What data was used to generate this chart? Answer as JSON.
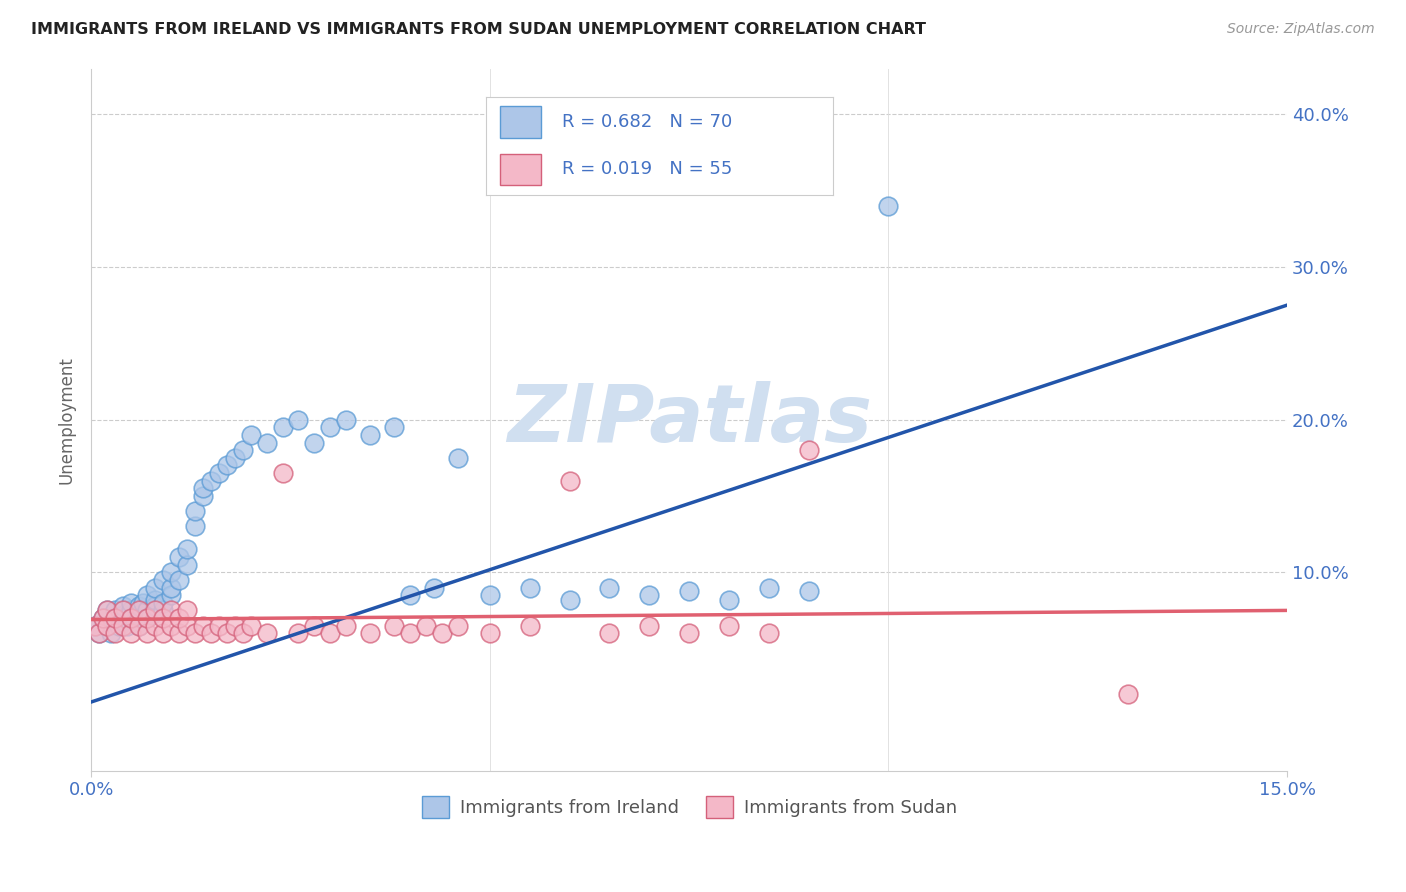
{
  "title": "IMMIGRANTS FROM IRELAND VS IMMIGRANTS FROM SUDAN UNEMPLOYMENT CORRELATION CHART",
  "source": "Source: ZipAtlas.com",
  "ylabel_label": "Unemployment",
  "x_min": 0.0,
  "x_max": 0.15,
  "y_min": -0.03,
  "y_max": 0.43,
  "ireland_color": "#adc6e8",
  "ireland_edge_color": "#5b9bd5",
  "sudan_color": "#f4b8c8",
  "sudan_edge_color": "#d4607a",
  "ireland_line_color": "#2255aa",
  "sudan_line_color": "#e06070",
  "tick_color": "#4472c4",
  "ylabel_color": "#666666",
  "legend_text_color": "#4472c4",
  "ireland_R": "0.682",
  "ireland_N": "70",
  "sudan_R": "0.019",
  "sudan_N": "55",
  "watermark_color": "#d0dff0",
  "ireland_line_x0": 0.0,
  "ireland_line_y0": 0.015,
  "ireland_line_x1": 0.15,
  "ireland_line_y1": 0.275,
  "sudan_line_x0": 0.0,
  "sudan_line_y0": 0.069,
  "sudan_line_x1": 0.15,
  "sudan_line_y1": 0.075,
  "ireland_scatter_x": [
    0.0005,
    0.001,
    0.0015,
    0.002,
    0.002,
    0.0025,
    0.003,
    0.003,
    0.003,
    0.0035,
    0.004,
    0.004,
    0.004,
    0.0045,
    0.005,
    0.005,
    0.005,
    0.0055,
    0.006,
    0.006,
    0.006,
    0.0065,
    0.007,
    0.007,
    0.007,
    0.0075,
    0.008,
    0.008,
    0.008,
    0.009,
    0.009,
    0.009,
    0.01,
    0.01,
    0.01,
    0.011,
    0.011,
    0.012,
    0.012,
    0.013,
    0.013,
    0.014,
    0.014,
    0.015,
    0.016,
    0.017,
    0.018,
    0.019,
    0.02,
    0.022,
    0.024,
    0.026,
    0.028,
    0.03,
    0.032,
    0.035,
    0.038,
    0.04,
    0.043,
    0.046,
    0.05,
    0.055,
    0.06,
    0.065,
    0.07,
    0.075,
    0.08,
    0.085,
    0.09,
    0.1
  ],
  "ireland_scatter_y": [
    0.065,
    0.06,
    0.07,
    0.065,
    0.075,
    0.06,
    0.068,
    0.075,
    0.07,
    0.065,
    0.072,
    0.068,
    0.078,
    0.065,
    0.07,
    0.075,
    0.08,
    0.068,
    0.072,
    0.078,
    0.065,
    0.08,
    0.075,
    0.07,
    0.085,
    0.072,
    0.078,
    0.082,
    0.09,
    0.075,
    0.08,
    0.095,
    0.085,
    0.09,
    0.1,
    0.095,
    0.11,
    0.105,
    0.115,
    0.13,
    0.14,
    0.15,
    0.155,
    0.16,
    0.165,
    0.17,
    0.175,
    0.18,
    0.19,
    0.185,
    0.195,
    0.2,
    0.185,
    0.195,
    0.2,
    0.19,
    0.195,
    0.085,
    0.09,
    0.175,
    0.085,
    0.09,
    0.082,
    0.09,
    0.085,
    0.088,
    0.082,
    0.09,
    0.088,
    0.34
  ],
  "sudan_scatter_x": [
    0.0005,
    0.001,
    0.0015,
    0.002,
    0.002,
    0.003,
    0.003,
    0.004,
    0.004,
    0.005,
    0.005,
    0.006,
    0.006,
    0.007,
    0.007,
    0.008,
    0.008,
    0.009,
    0.009,
    0.01,
    0.01,
    0.011,
    0.011,
    0.012,
    0.012,
    0.013,
    0.014,
    0.015,
    0.016,
    0.017,
    0.018,
    0.019,
    0.02,
    0.022,
    0.024,
    0.026,
    0.028,
    0.03,
    0.032,
    0.035,
    0.038,
    0.04,
    0.042,
    0.044,
    0.046,
    0.05,
    0.055,
    0.06,
    0.065,
    0.07,
    0.075,
    0.08,
    0.085,
    0.09,
    0.13
  ],
  "sudan_scatter_y": [
    0.065,
    0.06,
    0.07,
    0.065,
    0.075,
    0.06,
    0.07,
    0.065,
    0.075,
    0.06,
    0.07,
    0.065,
    0.075,
    0.06,
    0.07,
    0.065,
    0.075,
    0.06,
    0.07,
    0.065,
    0.075,
    0.06,
    0.07,
    0.065,
    0.075,
    0.06,
    0.065,
    0.06,
    0.065,
    0.06,
    0.065,
    0.06,
    0.065,
    0.06,
    0.165,
    0.06,
    0.065,
    0.06,
    0.065,
    0.06,
    0.065,
    0.06,
    0.065,
    0.06,
    0.065,
    0.06,
    0.065,
    0.16,
    0.06,
    0.065,
    0.06,
    0.065,
    0.06,
    0.18,
    0.02
  ]
}
